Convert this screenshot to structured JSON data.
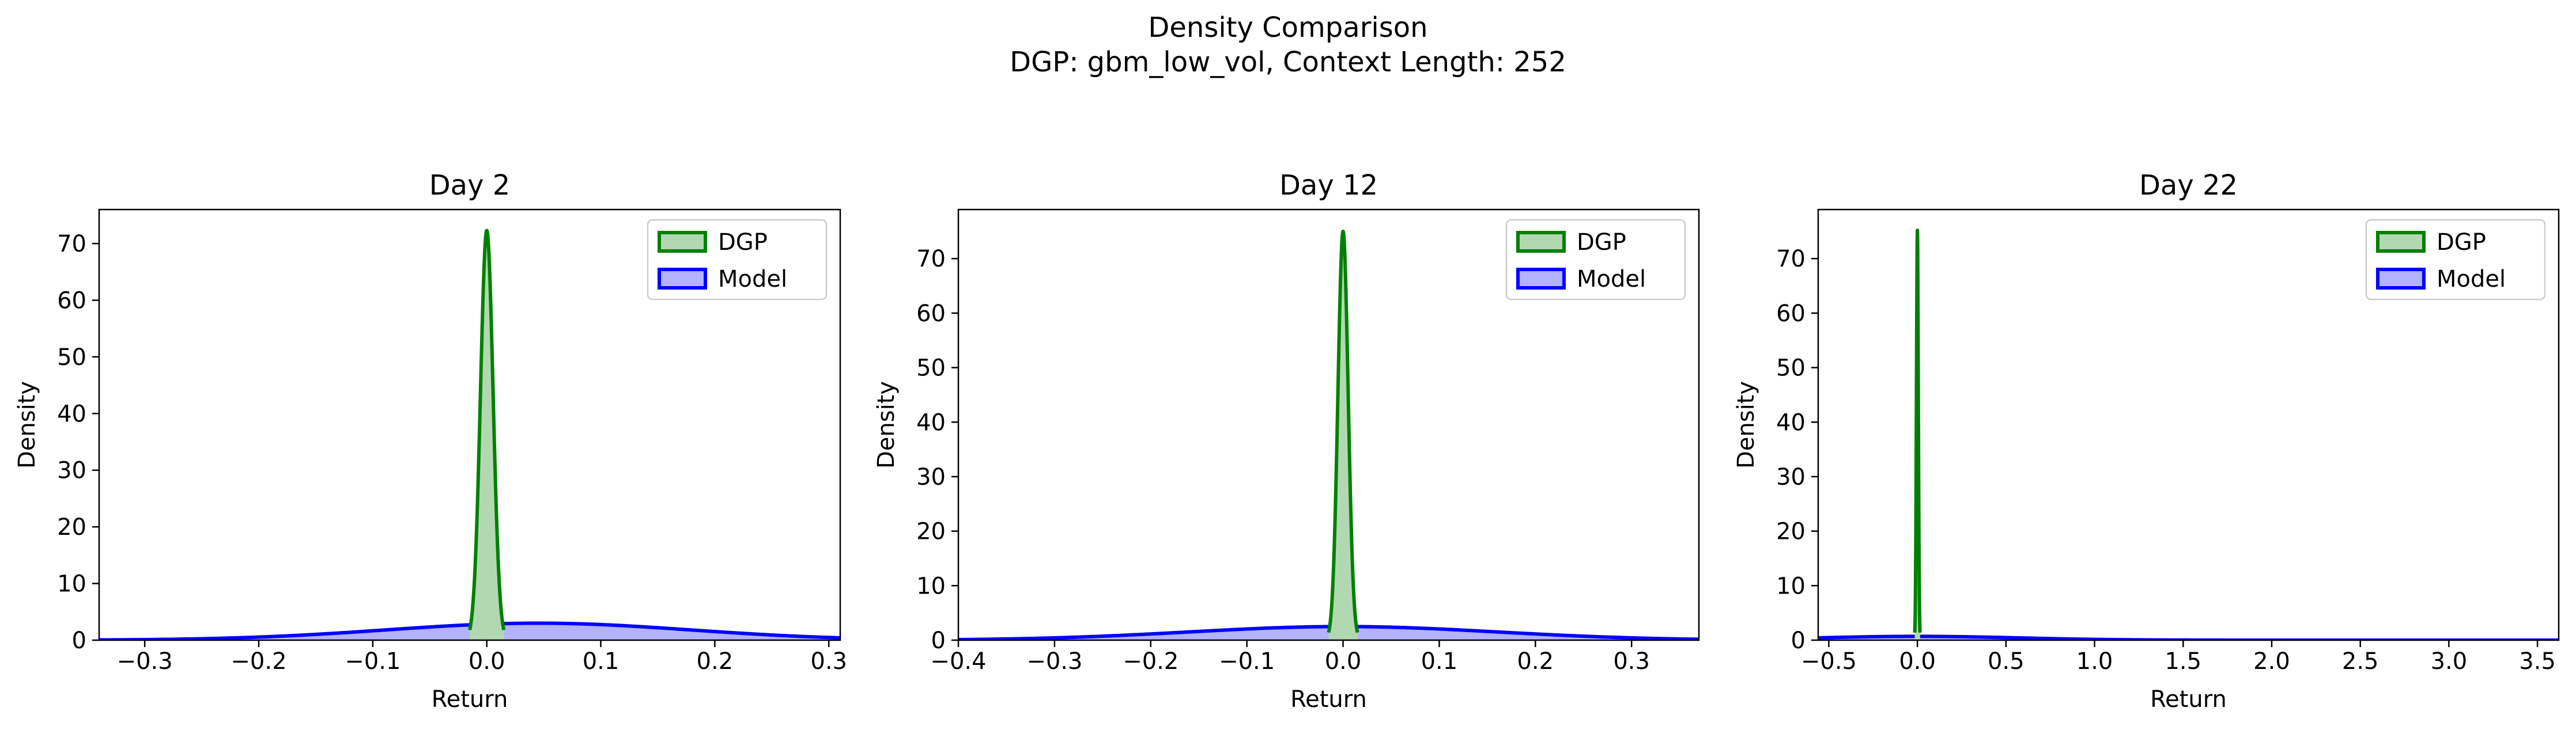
{
  "figure": {
    "title_line1": "Density Comparison",
    "title_line2": "DGP: gbm_low_vol, Context Length: 252"
  },
  "colors": {
    "dgp_line": "#008000",
    "dgp_fill": "#b2d8b2",
    "model_line": "#0000ff",
    "model_fill": "#b2b2ff",
    "axes": "#000000"
  },
  "chart_data": [
    {
      "type": "area",
      "title": "Day 2",
      "xlabel": "Return",
      "ylabel": "Density",
      "xlim": [
        -0.34,
        0.31
      ],
      "ylim": [
        0,
        76
      ],
      "xticks": [
        -0.3,
        -0.2,
        -0.1,
        0.0,
        0.1,
        0.2,
        0.3
      ],
      "xtick_labels": [
        "−0.3",
        "−0.2",
        "−0.1",
        "0.0",
        "0.1",
        "0.2",
        "0.3"
      ],
      "yticks": [
        0,
        10,
        20,
        30,
        40,
        50,
        60,
        70
      ],
      "legend_position": "upper right",
      "grid": false,
      "series": [
        {
          "name": "DGP",
          "distribution": "normal",
          "peak_x": 0.0,
          "peak_density": 72.3,
          "visible_range": [
            -0.015,
            0.015
          ]
        },
        {
          "name": "Model",
          "distribution": "normal",
          "peak_x": 0.045,
          "peak_density": 3.0,
          "visible_range": [
            -0.34,
            0.31
          ]
        }
      ]
    },
    {
      "type": "area",
      "title": "Day 12",
      "xlabel": "Return",
      "ylabel": "Density",
      "xlim": [
        -0.4,
        0.37
      ],
      "ylim": [
        0,
        79
      ],
      "xticks": [
        -0.4,
        -0.3,
        -0.2,
        -0.1,
        0.0,
        0.1,
        0.2,
        0.3
      ],
      "xtick_labels": [
        "−0.4",
        "−0.3",
        "−0.2",
        "−0.1",
        "0.0",
        "0.1",
        "0.2",
        "0.3"
      ],
      "yticks": [
        0,
        10,
        20,
        30,
        40,
        50,
        60,
        70
      ],
      "legend_position": "upper right",
      "grid": false,
      "series": [
        {
          "name": "DGP",
          "distribution": "normal",
          "peak_x": 0.0,
          "peak_density": 75.0,
          "visible_range": [
            -0.015,
            0.015
          ]
        },
        {
          "name": "Model",
          "distribution": "normal",
          "peak_x": 0.0,
          "peak_density": 2.5,
          "visible_range": [
            -0.4,
            0.37
          ]
        }
      ]
    },
    {
      "type": "area",
      "title": "Day 22",
      "xlabel": "Return",
      "ylabel": "Density",
      "xlim": [
        -0.56,
        3.62
      ],
      "ylim": [
        0,
        79
      ],
      "xticks": [
        -0.5,
        0.0,
        0.5,
        1.0,
        1.5,
        2.0,
        2.5,
        3.0,
        3.5
      ],
      "xtick_labels": [
        "−0.5",
        "0.0",
        "0.5",
        "1.0",
        "1.5",
        "2.0",
        "2.5",
        "3.0",
        "3.5"
      ],
      "yticks": [
        0,
        10,
        20,
        30,
        40,
        50,
        60,
        70
      ],
      "legend_position": "upper right",
      "grid": false,
      "series": [
        {
          "name": "DGP",
          "distribution": "normal",
          "peak_x": 0.0,
          "peak_density": 75.2,
          "visible_range": [
            -0.015,
            0.015
          ]
        },
        {
          "name": "Model",
          "distribution": "normal",
          "peak_x": 0.0,
          "peak_density": 0.7,
          "visible_range": [
            -0.56,
            3.62
          ]
        }
      ]
    }
  ]
}
